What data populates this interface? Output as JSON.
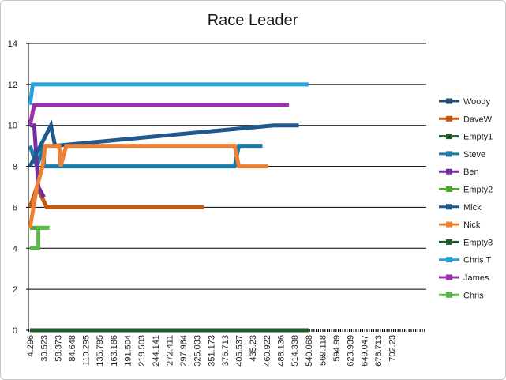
{
  "chart_data": {
    "type": "line",
    "title": "Race Leader",
    "xlabel": "",
    "ylabel": "",
    "ylim": [
      0,
      14
    ],
    "yticks": [
      0,
      2,
      4,
      6,
      8,
      10,
      12,
      14
    ],
    "grid": true,
    "legend_position": "right",
    "x_categories": [
      "4.296",
      "30.523",
      "58.373",
      "84.648",
      "110.295",
      "135.795",
      "163.186",
      "191.504",
      "218.503",
      "244.141",
      "272.411",
      "297.964",
      "325.033",
      "351.173",
      "376.713",
      "405.537",
      "435.23",
      "460.922",
      "488.136",
      "514.338",
      "540.068",
      "569.118",
      "594.99",
      "623.939",
      "649.047",
      "676.713",
      "702.23"
    ],
    "series": [
      {
        "name": "Woody",
        "color": "#1f4e79",
        "points": [
          [
            0,
            0
          ],
          [
            1,
            0
          ],
          [
            20,
            0
          ]
        ]
      },
      {
        "name": "DaveW",
        "color": "#c55a11",
        "points": [
          [
            0,
            6
          ],
          [
            0.5,
            7
          ],
          [
            1.2,
            6
          ],
          [
            12.5,
            6
          ]
        ]
      },
      {
        "name": "Empty1",
        "color": "#1e5a2e",
        "points": [
          [
            0,
            0
          ],
          [
            20,
            0
          ]
        ]
      },
      {
        "name": "Steve",
        "color": "#1a7aab",
        "points": [
          [
            0,
            9
          ],
          [
            0.5,
            8
          ],
          [
            1,
            9
          ],
          [
            1,
            8
          ],
          [
            14.7,
            8
          ],
          [
            15,
            9
          ],
          [
            16.7,
            9
          ]
        ]
      },
      {
        "name": "Ben",
        "color": "#7030a0",
        "points": [
          [
            0,
            10
          ],
          [
            0.3,
            10
          ],
          [
            0.6,
            7
          ],
          [
            1,
            6.5
          ]
        ]
      },
      {
        "name": "Empty2",
        "color": "#4ea72e",
        "points": [
          [
            0,
            5
          ],
          [
            1,
            5
          ]
        ]
      },
      {
        "name": "Mick",
        "color": "#1f5a8f",
        "points": [
          [
            0,
            8
          ],
          [
            1.5,
            10
          ],
          [
            1.8,
            9
          ],
          [
            17.5,
            10
          ],
          [
            19.3,
            10
          ]
        ]
      },
      {
        "name": "Nick",
        "color": "#ee7f33",
        "points": [
          [
            0,
            5
          ],
          [
            0.5,
            7
          ],
          [
            0.9,
            8
          ],
          [
            1.1,
            9
          ],
          [
            2.1,
            9
          ],
          [
            2.2,
            8
          ],
          [
            2.6,
            9
          ],
          [
            14.7,
            9
          ],
          [
            15,
            8
          ],
          [
            17.1,
            8
          ]
        ]
      },
      {
        "name": "Empty3",
        "color": "#1e5a2e",
        "points": [
          [
            0,
            0
          ],
          [
            20,
            0
          ]
        ]
      },
      {
        "name": "Chris T",
        "color": "#27a1d9",
        "points": [
          [
            0,
            11
          ],
          [
            0.2,
            12
          ],
          [
            20,
            12
          ]
        ]
      },
      {
        "name": "James",
        "color": "#9b2fae",
        "points": [
          [
            0,
            10
          ],
          [
            0.3,
            11
          ],
          [
            18.6,
            11
          ]
        ]
      },
      {
        "name": "Chris",
        "color": "#59b847",
        "points": [
          [
            0,
            4
          ],
          [
            0.6,
            4
          ],
          [
            0.6,
            5
          ],
          [
            1.4,
            5
          ]
        ]
      }
    ],
    "legend": [
      "Woody",
      "DaveW",
      "Empty1",
      "Steve",
      "Ben",
      "Empty2",
      "Mick",
      "Nick",
      "Empty3",
      "Chris T",
      "James",
      "Chris"
    ]
  }
}
